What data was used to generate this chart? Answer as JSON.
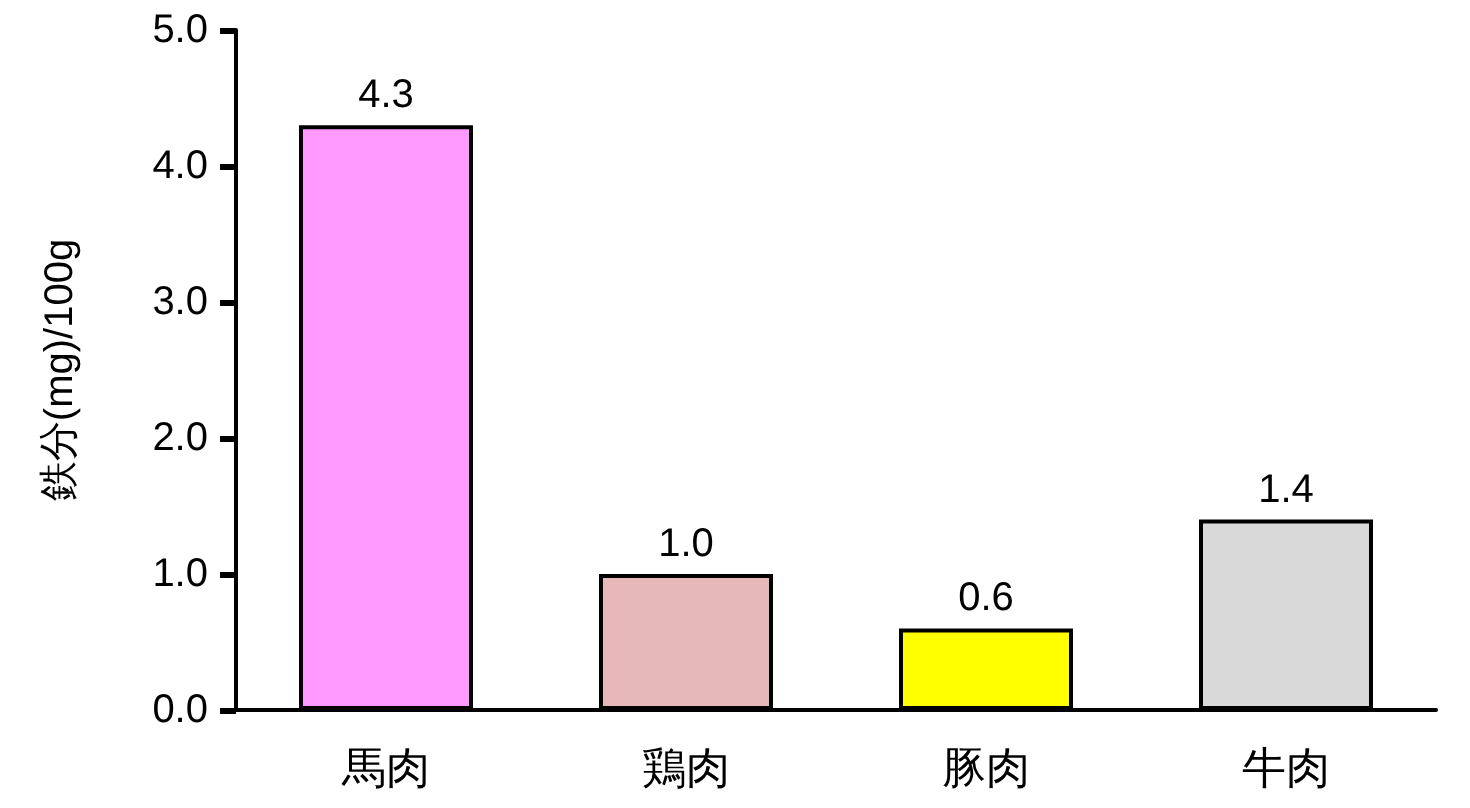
{
  "chart_data": {
    "type": "bar",
    "ylabel": "鉄分(mg)/100g",
    "categories": [
      "馬肉",
      "鶏肉",
      "豚肉",
      "牛肉"
    ],
    "values": [
      4.3,
      1.0,
      0.6,
      1.4
    ],
    "colors": [
      "#ff99ff",
      "#e6b8b7",
      "#ffff00",
      "#d9d9d9"
    ],
    "ylim": [
      0,
      5
    ],
    "yticks": [
      {
        "value": 0,
        "label": "0.0"
      },
      {
        "value": 1,
        "label": "1.0"
      },
      {
        "value": 2,
        "label": "2.0"
      },
      {
        "value": 3,
        "label": "3.0"
      },
      {
        "value": 4,
        "label": "4.0"
      },
      {
        "value": 5,
        "label": "5.0"
      }
    ],
    "value_labels": [
      "4.3",
      "1.0",
      "0.6",
      "1.4"
    ],
    "grid": false
  }
}
